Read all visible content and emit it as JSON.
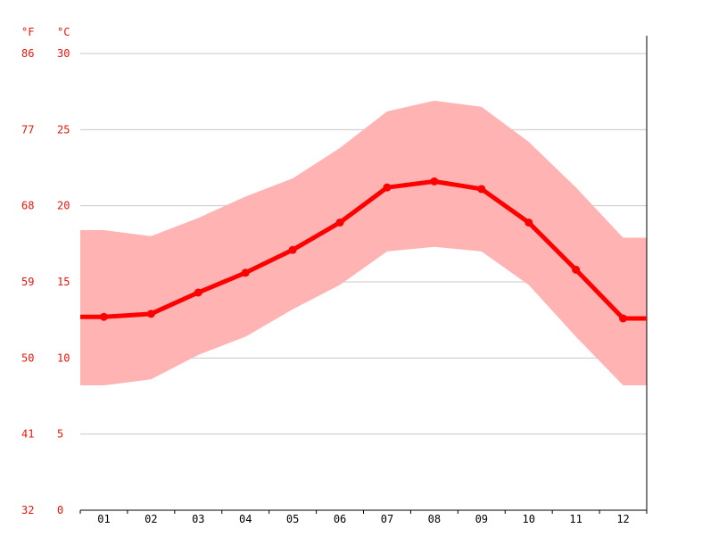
{
  "chart_data": {
    "type": "line",
    "unit_labels": {
      "fahrenheit": "°F",
      "celsius": "°C"
    },
    "y_ticks_celsius": [
      "0",
      "5",
      "10",
      "15",
      "20",
      "25",
      "30"
    ],
    "y_ticks_fahrenheit": [
      "32",
      "41",
      "50",
      "59",
      "68",
      "77",
      "86"
    ],
    "ylim": [
      0,
      30
    ],
    "categories": [
      "01",
      "02",
      "03",
      "04",
      "05",
      "06",
      "07",
      "08",
      "09",
      "10",
      "11",
      "12"
    ],
    "series": [
      {
        "role": "average",
        "values": [
          12.7,
          12.9,
          14.3,
          15.6,
          17.1,
          18.9,
          21.2,
          21.6,
          21.1,
          18.9,
          15.8,
          12.6
        ]
      },
      {
        "role": "max",
        "values": [
          18.4,
          18.0,
          19.2,
          20.6,
          21.8,
          23.8,
          26.2,
          26.9,
          26.5,
          24.2,
          21.2,
          17.9
        ]
      },
      {
        "role": "min",
        "values": [
          8.2,
          8.6,
          10.2,
          11.4,
          13.2,
          14.8,
          17.0,
          17.3,
          17.0,
          14.8,
          11.4,
          8.2
        ]
      }
    ],
    "grid": true,
    "colors": {
      "line": "#ff0000",
      "band": "#ffb3b3",
      "tick_text": "#e8160c",
      "grid": "#c8c8c8"
    }
  }
}
